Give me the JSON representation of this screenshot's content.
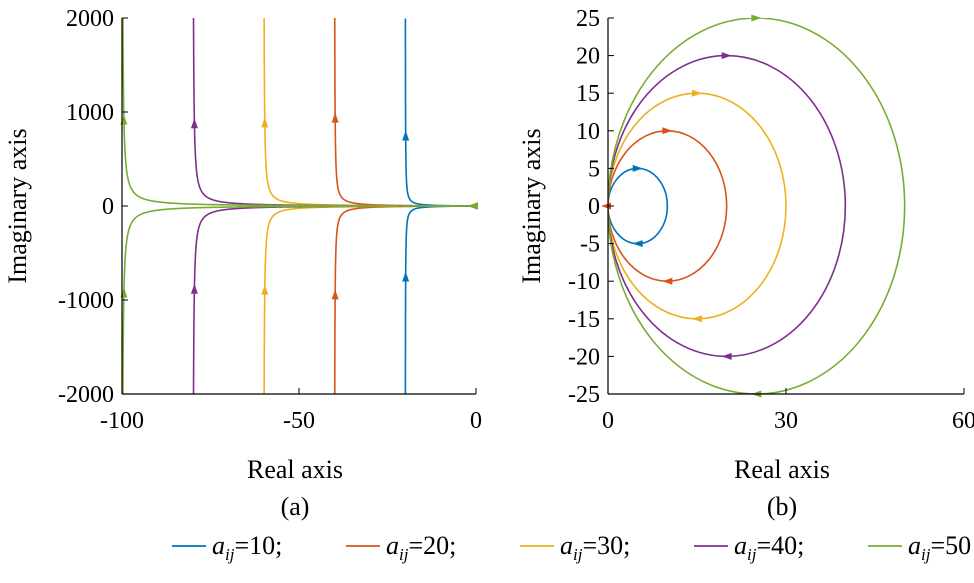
{
  "chart_data": [
    {
      "type": "line",
      "panel": "(a)",
      "xlabel": "Real axis",
      "ylabel": "Imaginary axis",
      "xlim": [
        -100,
        0
      ],
      "ylim": [
        -2000,
        2000
      ],
      "xticks": [
        "-100",
        "-50",
        "0"
      ],
      "yticks": [
        "2000",
        "1000",
        "0",
        "-1000",
        "-2000"
      ],
      "series": [
        {
          "name": "a_ij=10",
          "color": "#0072BD",
          "asymptote_x": -20,
          "arrow_y": 750
        },
        {
          "name": "a_ij=20",
          "color": "#D95319",
          "asymptote_x": -40,
          "arrow_y": 940
        },
        {
          "name": "a_ij=30",
          "color": "#EDB120",
          "asymptote_x": -60,
          "arrow_y": 890
        },
        {
          "name": "a_ij=40",
          "color": "#7E2F8E",
          "asymptote_x": -80,
          "arrow_y": 880
        },
        {
          "name": "a_ij=50",
          "color": "#77AC30",
          "asymptote_x": -100,
          "arrow_y": 920
        }
      ]
    },
    {
      "type": "line",
      "panel": "(b)",
      "xlabel": "Real axis",
      "ylabel": "Imaginary axis",
      "xlim": [
        0,
        60
      ],
      "ylim": [
        -25,
        25
      ],
      "xticks": [
        "0",
        "30",
        "60"
      ],
      "yticks": [
        "25",
        "20",
        "15",
        "10",
        "5",
        "0",
        "-5",
        "-10",
        "-15",
        "-20",
        "-25"
      ],
      "series": [
        {
          "name": "a_ij=10",
          "color": "#0072BD",
          "center": [
            5,
            0
          ],
          "radius": 5
        },
        {
          "name": "a_ij=20",
          "color": "#D95319",
          "center": [
            10,
            0
          ],
          "radius": 10
        },
        {
          "name": "a_ij=30",
          "color": "#EDB120",
          "center": [
            15,
            0
          ],
          "radius": 15
        },
        {
          "name": "a_ij=40",
          "color": "#7E2F8E",
          "center": [
            20,
            0
          ],
          "radius": 20
        },
        {
          "name": "a_ij=50",
          "color": "#77AC30",
          "center": [
            25,
            0
          ],
          "radius": 25
        }
      ]
    }
  ],
  "legend": {
    "items": [
      {
        "var": "a",
        "sub": "ij",
        "value": "=10;",
        "color": "#0072BD"
      },
      {
        "var": "a",
        "sub": "ij",
        "value": "=20;",
        "color": "#D95319"
      },
      {
        "var": "a",
        "sub": "ij",
        "value": "=30;",
        "color": "#EDB120"
      },
      {
        "var": "a",
        "sub": "ij",
        "value": "=40;",
        "color": "#7E2F8E"
      },
      {
        "var": "a",
        "sub": "ij",
        "value": "=50",
        "color": "#77AC30"
      }
    ]
  }
}
